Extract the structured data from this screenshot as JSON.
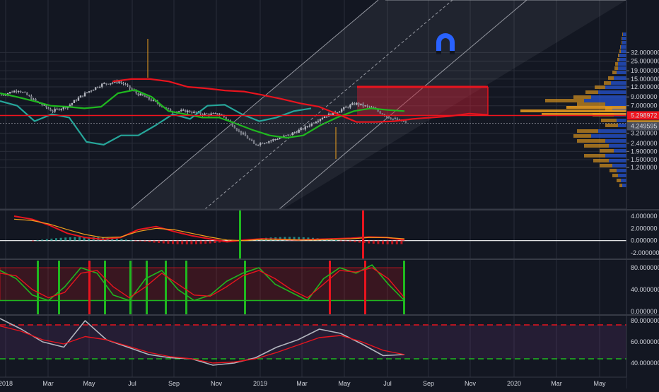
{
  "colors": {
    "background": "#131722",
    "grid": "#2a2e39",
    "candle": "#b2b5be",
    "green": "#1fb81f",
    "red": "#e8141e",
    "teal": "#26a69a",
    "maroon": "#b71c5c",
    "channel": "#ffffff",
    "orange": "#f0a01e",
    "blue": "#2962ff",
    "price_tag_red": "#f0141e",
    "price_tag_orange": "#e39a1e",
    "price_tag_gray": "#4a4e5a"
  },
  "magnet_icon": "magnet-icon",
  "price_axis": {
    "ticks": [
      "32.000000",
      "25.000000",
      "19.000000",
      "15.000000",
      "12.000000",
      "9.000000",
      "7.000000",
      "5.298972",
      "5.208710",
      "4.249595",
      "3.200000",
      "2.400000",
      "1.900000",
      "1.500000",
      "1.200000"
    ],
    "current_price": "5.298972",
    "secondary_price": "5.208710",
    "third_price": "4.249595"
  },
  "macd_axis": {
    "ticks": [
      "4.000000",
      "2.000000",
      "0.000000",
      "-2.000000"
    ]
  },
  "stoch_axis": {
    "ticks": [
      "80.000000",
      "40.000000",
      "0.000000"
    ]
  },
  "rsi_axis": {
    "ticks": [
      "80.000000",
      "60.000000",
      "40.000000"
    ]
  },
  "time_axis": {
    "labels": [
      "2018",
      "Mar",
      "May",
      "Jul",
      "Sep",
      "Nov",
      "2019",
      "Mar",
      "May",
      "Jul",
      "Sep",
      "Nov",
      "2020",
      "Mar",
      "May"
    ]
  },
  "chart_data": [
    {
      "type": "line",
      "pane": "price",
      "scale": "log",
      "ylim": [
        1.2,
        32
      ],
      "x_range": [
        "2018-01",
        "2020-06"
      ],
      "series": [
        {
          "values": [
            9.5,
            11,
            8,
            6,
            7,
            10,
            13,
            14,
            10,
            8,
            6,
            6,
            5.5,
            5.5,
            3.5,
            2.3,
            2.6,
            3.0,
            3.7,
            5.0,
            6.0,
            7.5,
            6.5,
            5.0,
            4.3
          ]
        },
        {
          "values": [
            null,
            null,
            null,
            null,
            null,
            null,
            14,
            15,
            15,
            14,
            12,
            11.5,
            10.8,
            10.5,
            9.5,
            8.5,
            7.5,
            6.8,
            5.5,
            4.4,
            4.4,
            4.5,
            4.8,
            5.0,
            5.2,
            5.6,
            5.4
          ]
        },
        {
          "values": [
            10,
            9,
            8,
            7,
            6.8,
            6.5,
            6.8,
            10,
            11,
            9,
            6,
            5.5,
            5.0,
            5.0,
            4.2,
            3.5,
            3.0,
            2.8,
            3.0,
            4.0,
            5.0,
            6.0,
            6.5,
            6.2,
            6.0
          ]
        },
        {
          "values": [
            8,
            7,
            4.5,
            5.5,
            5.0,
            2.5,
            2.3,
            3.0,
            3.0,
            4.0,
            5.5,
            4.8,
            7.0,
            7.2,
            5.5,
            4.5,
            5.0,
            6.0,
            6.5
          ]
        }
      ],
      "annotations": {
        "rising_channel": true,
        "resistance_box": [
          5.3,
          12.0
        ],
        "horizontal_line": 5.298972
      }
    },
    {
      "type": "line",
      "pane": "macd",
      "ylim": [
        -2,
        4.5
      ],
      "series": [
        {
          "values": [
            4,
            3.5,
            2.5,
            1.2,
            0.5,
            0.2,
            0.5,
            1.8,
            2.3,
            1.5,
            0.8,
            0.3,
            -0.2,
            0.1,
            0.3,
            0.2,
            0.1,
            0.2,
            0.3,
            0.4,
            0.6,
            0.5,
            0.1
          ]
        },
        {
          "values": [
            3.5,
            3.3,
            2.7,
            1.8,
            1.0,
            0.5,
            0.6,
            1.5,
            2.0,
            1.8,
            1.2,
            0.6,
            0.1,
            0.0,
            0.2,
            0.2,
            0.1,
            0.1,
            0.2,
            0.3,
            0.5,
            0.5,
            0.3
          ]
        }
      ]
    },
    {
      "type": "line",
      "pane": "stochastic",
      "ylim": [
        0,
        100
      ],
      "series": [
        {
          "values": [
            75,
            60,
            30,
            20,
            45,
            80,
            70,
            30,
            20,
            60,
            75,
            40,
            20,
            30,
            55,
            70,
            80,
            50,
            35,
            20,
            60,
            80,
            70,
            85,
            50,
            20
          ]
        },
        {
          "values": [
            70,
            65,
            40,
            25,
            35,
            70,
            75,
            45,
            25,
            45,
            70,
            50,
            30,
            28,
            45,
            65,
            75,
            60,
            40,
            25,
            50,
            75,
            72,
            80,
            60,
            25
          ]
        }
      ]
    },
    {
      "type": "line",
      "pane": "rsi",
      "ylim": [
        35,
        88
      ],
      "series": [
        {
          "values": [
            82,
            72,
            60,
            55,
            80,
            62,
            55,
            48,
            45,
            44,
            38,
            40,
            45,
            55,
            62,
            72,
            68,
            58,
            47,
            48
          ]
        },
        {
          "values": [
            75,
            70,
            62,
            58,
            65,
            62,
            56,
            50,
            46,
            44,
            40,
            41,
            44,
            50,
            57,
            64,
            66,
            60,
            52,
            48
          ]
        }
      ]
    }
  ]
}
